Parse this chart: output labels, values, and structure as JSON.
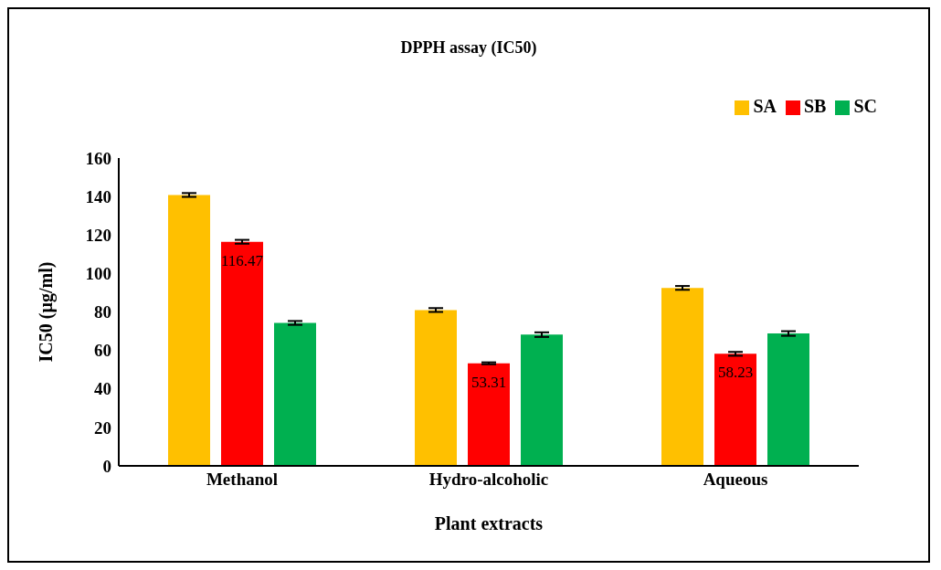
{
  "chart_data": {
    "type": "bar",
    "title": "DPPH assay (IC50)",
    "xlabel": "Plant extracts",
    "ylabel": "IC50 (µg/ml)",
    "categories": [
      "Methanol",
      "Hydro-alcoholic",
      "Aqueous"
    ],
    "series": [
      {
        "name": "SA",
        "color": "#ffc000",
        "values": [
          140.8,
          81.0,
          92.5
        ],
        "errors": [
          1,
          1,
          1
        ]
      },
      {
        "name": "SB",
        "color": "#ff0000",
        "values": [
          116.47,
          53.31,
          58.23
        ],
        "errors": [
          1,
          0.5,
          1
        ],
        "value_labels": [
          "116.47",
          "53.31",
          "58.23"
        ]
      },
      {
        "name": "SC",
        "color": "#00b050",
        "values": [
          74.3,
          68.2,
          68.8
        ],
        "errors": [
          1,
          1.2,
          1.2
        ]
      }
    ],
    "ylim": [
      0,
      160
    ],
    "yticks": [
      0,
      20,
      40,
      60,
      80,
      100,
      120,
      140,
      160
    ],
    "grid": false,
    "legend": "top right"
  }
}
